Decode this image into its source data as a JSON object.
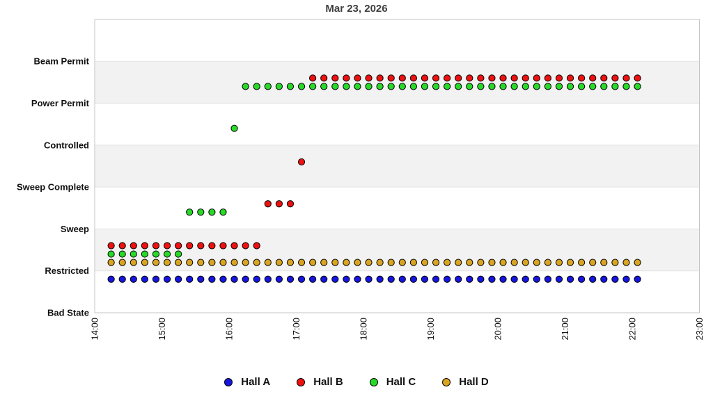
{
  "chart_data": {
    "type": "scatter",
    "title": "Mar 23, 2026",
    "x_axis": {
      "tick_labels": [
        "14:00",
        "15:00",
        "16:00",
        "17:00",
        "18:00",
        "19:00",
        "20:00",
        "21:00",
        "22:00",
        "23:00"
      ],
      "range_hours": [
        14,
        23
      ],
      "tick_label_rotation_deg": -90
    },
    "y_axis": {
      "categories_bottom_to_top": [
        "Bad State",
        "Restricted",
        "Sweep",
        "Sweep Complete",
        "Controlled",
        "Power Permit",
        "Beam Permit"
      ],
      "shaded_band_between_levels": [
        [
          1,
          2
        ],
        [
          3,
          4
        ],
        [
          5,
          6
        ]
      ]
    },
    "sample_interval_minutes": 10,
    "series": [
      {
        "name": "Hall A",
        "color": "#1616e0",
        "lane_offset": -0.2,
        "segments": [
          {
            "state": "Restricted",
            "from": "14:15",
            "to": "22:05"
          }
        ]
      },
      {
        "name": "Hall B",
        "color": "#ee1111",
        "lane_offset": 0.6,
        "segments": [
          {
            "state": "Restricted",
            "from": "14:15",
            "to": "16:25"
          },
          {
            "state": "Sweep",
            "from": "16:35",
            "to": "16:55"
          },
          {
            "state": "Sweep Complete",
            "from": "17:05",
            "to": "17:05"
          },
          {
            "state": "Power Permit",
            "from": "17:15",
            "to": "22:05"
          }
        ]
      },
      {
        "name": "Hall C",
        "color": "#28d928",
        "lane_offset": 0.4,
        "segments": [
          {
            "state": "Restricted",
            "from": "14:15",
            "to": "15:15"
          },
          {
            "state": "Sweep",
            "from": "15:25",
            "to": "15:55"
          },
          {
            "state": "Controlled",
            "from": "16:05",
            "to": "16:05"
          },
          {
            "state": "Power Permit",
            "from": "16:15",
            "to": "22:05"
          }
        ]
      },
      {
        "name": "Hall D",
        "color": "#d9a521",
        "lane_offset": 0.2,
        "segments": [
          {
            "state": "Restricted",
            "from": "14:15",
            "to": "22:05"
          }
        ]
      }
    ],
    "legend": {
      "position": "bottom",
      "entries": [
        "Hall A",
        "Hall B",
        "Hall C",
        "Hall D"
      ]
    },
    "style": {
      "band_fill": "#f2f2f2",
      "gridline_color": "#e2e2e2",
      "plot_border_color": "#c4c4c4",
      "title_color": "#3f3f3f",
      "axis_text_color": "#111111",
      "marker_outline": "#000000"
    }
  }
}
